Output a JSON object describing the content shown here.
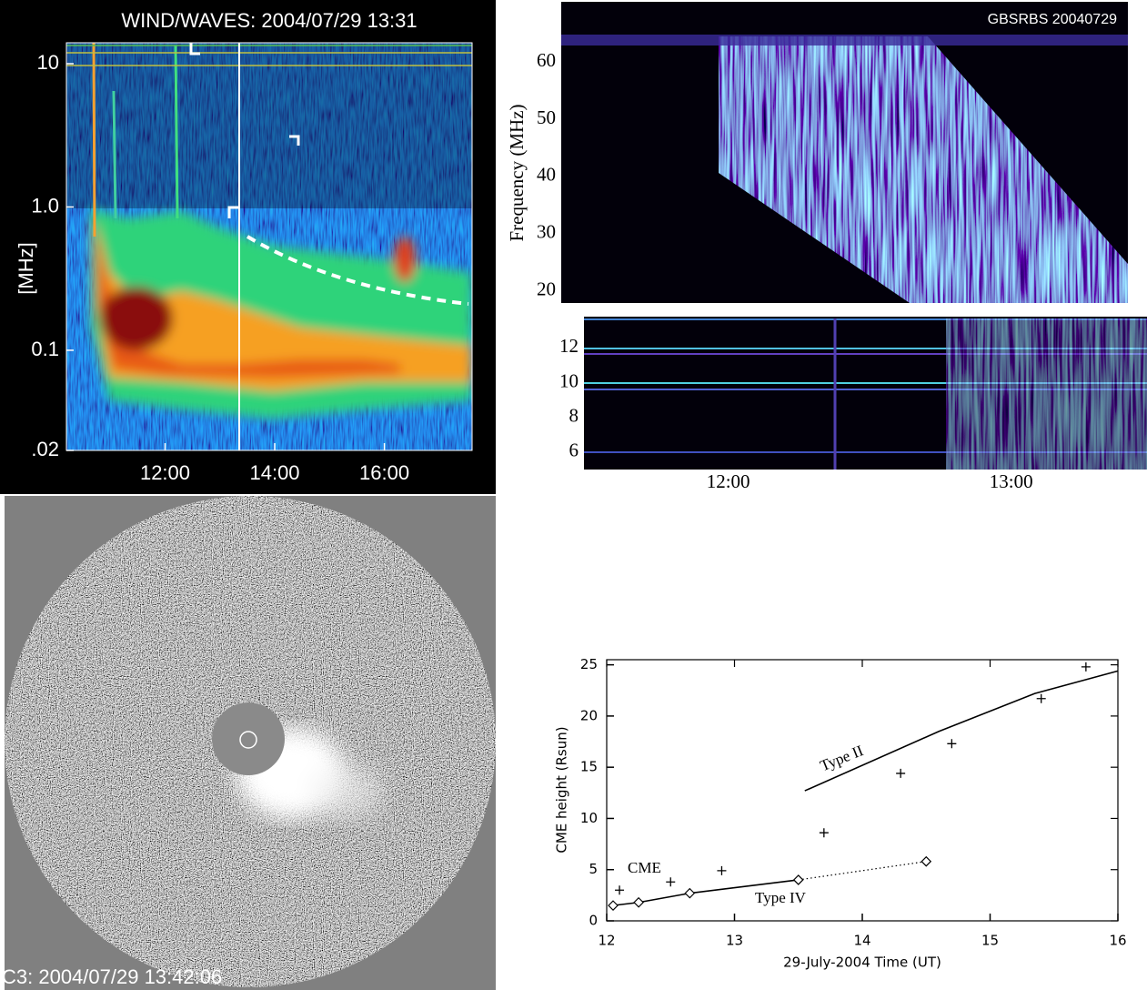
{
  "chart_data": [
    {
      "type": "spectrogram",
      "title": "WIND/WAVES: 2004/07/29 13:31",
      "ylabel": "[MHz]",
      "log_y": true,
      "ylim": [
        0.02,
        14
      ],
      "yticks": [
        {
          "value": 0.02,
          "label": ".02"
        },
        0.1,
        {
          "value": 1,
          "label": "1.0"
        },
        10
      ],
      "xlim": [
        10.2,
        17.6
      ],
      "xticks": [
        {
          "value": 12,
          "label": "12:00"
        },
        {
          "value": 14,
          "label": "14:00"
        },
        {
          "value": 16,
          "label": "16:00"
        }
      ]
    },
    {
      "type": "spectrogram",
      "title": "GBSRBS 20040729",
      "ylabel": "Frequency (MHz)",
      "ylim": [
        17.9,
        70.5
      ],
      "yticks": [
        20,
        30,
        40,
        50,
        60
      ]
    },
    {
      "type": "spectrogram",
      "ylim": [
        5,
        13.8
      ],
      "yticks": [
        6,
        8,
        10,
        12
      ],
      "xlim": [
        11.49,
        13.48
      ],
      "xticks": [
        {
          "value": 12,
          "label": "12:00"
        },
        {
          "value": 13,
          "label": "13:00"
        }
      ]
    },
    {
      "type": "line",
      "xlabel": "29-July-2004 Time (UT)",
      "ylabel": "CME height (Rsun)",
      "xlim": [
        12,
        16
      ],
      "ylim": [
        0,
        25.5
      ],
      "xticks": [
        12,
        13,
        14,
        15,
        16
      ],
      "yticks": [
        0,
        5,
        10,
        15,
        20,
        25
      ],
      "series": [
        {
          "name": "CME",
          "marker": "plus",
          "line": false,
          "color": "#000000",
          "x": [
            12.1,
            12.5,
            12.9,
            13.7,
            14.3,
            14.7,
            15.4,
            15.75
          ],
          "values": [
            3.0,
            3.8,
            4.9,
            8.6,
            14.4,
            17.3,
            21.7,
            24.8
          ]
        },
        {
          "name": "Type II",
          "marker": "none",
          "line": true,
          "color": "#000000",
          "x": [
            13.55,
            14.6,
            15.35,
            16.0
          ],
          "values": [
            12.7,
            18.5,
            22.2,
            24.4
          ]
        },
        {
          "name": "Type IV",
          "marker": "diamond",
          "line": true,
          "color": "#000000",
          "linestyle": [
            "solid",
            "solid",
            "solid",
            "dotted"
          ],
          "x": [
            12.05,
            12.25,
            12.65,
            13.5,
            14.5
          ],
          "values": [
            1.5,
            1.8,
            2.7,
            4.0,
            5.8
          ]
        }
      ]
    }
  ],
  "coronagraph": {
    "caption": "C3: 2004/07/29 13:42:06"
  }
}
